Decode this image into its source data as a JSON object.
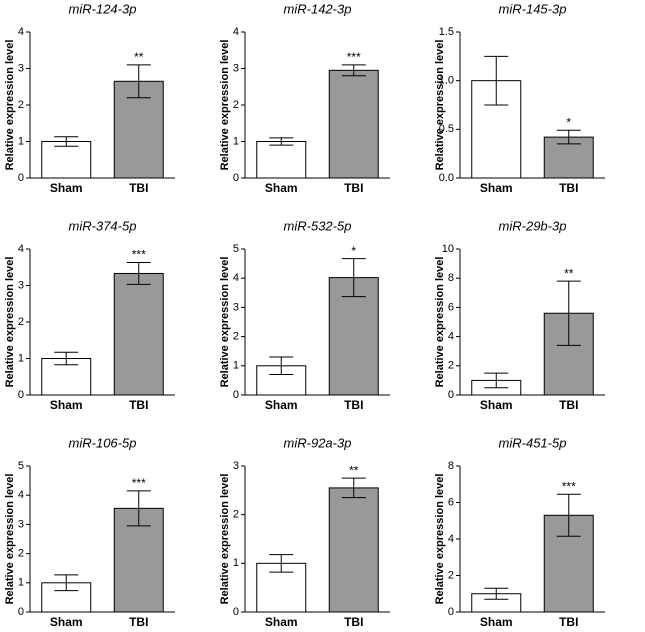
{
  "chart_data": [
    {
      "type": "bar",
      "title": "miR-124-3p",
      "y_label": "Relative expression level",
      "categories": [
        "Sham",
        "TBI"
      ],
      "values": [
        1.0,
        2.65
      ],
      "errors": [
        0.13,
        0.45
      ],
      "colors": [
        "#ffffff",
        "#999999"
      ],
      "annotations": [
        null,
        "**"
      ],
      "ylim": [
        0,
        4
      ],
      "yticks": [
        0,
        1,
        2,
        3,
        4
      ]
    },
    {
      "type": "bar",
      "title": "miR-142-3p",
      "y_label": "Relative expression level",
      "categories": [
        "Sham",
        "TBI"
      ],
      "values": [
        1.0,
        2.95
      ],
      "errors": [
        0.1,
        0.15
      ],
      "colors": [
        "#ffffff",
        "#999999"
      ],
      "annotations": [
        null,
        "***"
      ],
      "ylim": [
        0,
        4
      ],
      "yticks": [
        0,
        1,
        2,
        3,
        4
      ]
    },
    {
      "type": "bar",
      "title": "miR-145-3p",
      "y_label": "Relative expression level",
      "categories": [
        "Sham",
        "TBI"
      ],
      "values": [
        1.0,
        0.42
      ],
      "errors": [
        0.25,
        0.07
      ],
      "colors": [
        "#ffffff",
        "#999999"
      ],
      "annotations": [
        null,
        "*"
      ],
      "ylim": [
        0,
        1.5
      ],
      "yticks": [
        {
          "value": 0,
          "label": "0.0"
        },
        {
          "value": 0.5,
          "label": "0.5"
        },
        {
          "value": 1,
          "label": "1.0"
        },
        {
          "value": 1.5,
          "label": "1.5"
        }
      ]
    },
    {
      "type": "bar",
      "title": "miR-374-5p",
      "y_label": "Relative expression level",
      "categories": [
        "Sham",
        "TBI"
      ],
      "values": [
        1.0,
        3.33
      ],
      "errors": [
        0.17,
        0.3
      ],
      "colors": [
        "#ffffff",
        "#999999"
      ],
      "annotations": [
        null,
        "***"
      ],
      "ylim": [
        0,
        4
      ],
      "yticks": [
        0,
        1,
        2,
        3,
        4
      ]
    },
    {
      "type": "bar",
      "title": "miR-532-5p",
      "y_label": "Relative expression level",
      "categories": [
        "Sham",
        "TBI"
      ],
      "values": [
        1.0,
        4.02
      ],
      "errors": [
        0.3,
        0.65
      ],
      "colors": [
        "#ffffff",
        "#999999"
      ],
      "annotations": [
        null,
        "*"
      ],
      "ylim": [
        0,
        5
      ],
      "yticks": [
        0,
        1,
        2,
        3,
        4,
        5
      ]
    },
    {
      "type": "bar",
      "title": "miR-29b-3p",
      "y_label": "Relative expression level",
      "categories": [
        "Sham",
        "TBI"
      ],
      "values": [
        1.0,
        5.6
      ],
      "errors": [
        0.5,
        2.2
      ],
      "colors": [
        "#ffffff",
        "#999999"
      ],
      "annotations": [
        null,
        "**"
      ],
      "ylim": [
        0,
        10
      ],
      "yticks": [
        0,
        2,
        4,
        6,
        8,
        10
      ]
    },
    {
      "type": "bar",
      "title": "miR-106-5p",
      "y_label": "Relative expression level",
      "categories": [
        "Sham",
        "TBI"
      ],
      "values": [
        1.0,
        3.55
      ],
      "errors": [
        0.27,
        0.6
      ],
      "colors": [
        "#ffffff",
        "#999999"
      ],
      "annotations": [
        null,
        "***"
      ],
      "ylim": [
        0,
        5
      ],
      "yticks": [
        0,
        1,
        2,
        3,
        4,
        5
      ]
    },
    {
      "type": "bar",
      "title": "miR-92a-3p",
      "y_label": "Relative expression level",
      "categories": [
        "Sham",
        "TBI"
      ],
      "values": [
        1.0,
        2.55
      ],
      "errors": [
        0.18,
        0.2
      ],
      "colors": [
        "#ffffff",
        "#999999"
      ],
      "annotations": [
        null,
        "**"
      ],
      "ylim": [
        0,
        3
      ],
      "yticks": [
        0,
        1,
        2,
        3
      ]
    },
    {
      "type": "bar",
      "title": "miR-451-5p",
      "y_label": "Relative expression level",
      "categories": [
        "Sham",
        "TBI"
      ],
      "values": [
        1.0,
        5.3
      ],
      "errors": [
        0.3,
        1.15
      ],
      "colors": [
        "#ffffff",
        "#999999"
      ],
      "annotations": [
        null,
        "***"
      ],
      "ylim": [
        0,
        8
      ],
      "yticks": [
        0,
        2,
        4,
        6,
        8
      ]
    }
  ]
}
